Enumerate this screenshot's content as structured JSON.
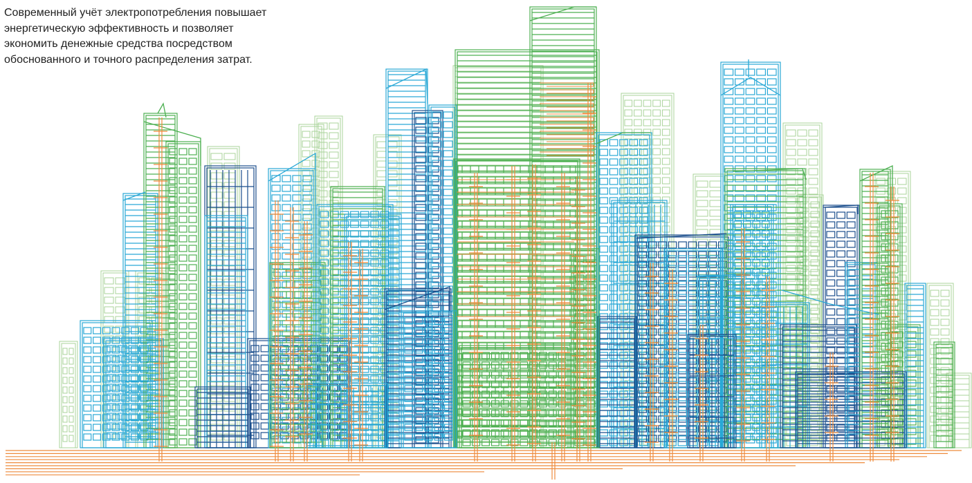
{
  "intro": {
    "lines": [
      "Современный учёт электропотребления повышает",
      "энергетическую эффективность и позволяет",
      "экономить денежные средства посредством",
      "обоснованного и точного распределения затрат."
    ]
  },
  "illustration": {
    "subject": "city-skyline-line-art",
    "colors": {
      "pale_green": "#a9d39a",
      "green": "#4caf50",
      "cyan": "#29a8d6",
      "navy": "#1b4e8c",
      "orange": "#ee8a3b"
    }
  }
}
